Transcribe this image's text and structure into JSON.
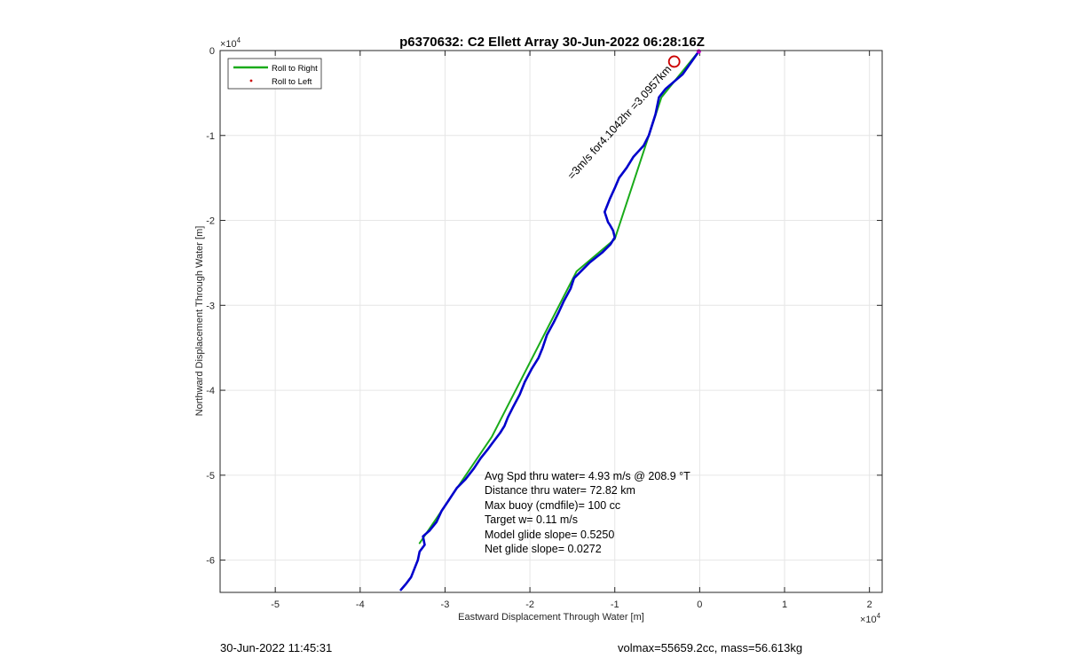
{
  "chart_data": {
    "type": "line",
    "title": "p6370632: C2 Ellett Array 30-Jun-2022 06:28:16Z",
    "xlabel": "Eastward Displacement Through Water [m]",
    "ylabel": "Northward Displacement Through Water [m]",
    "x_exponent": "×10",
    "y_exponent": "×10",
    "exponent_power": "4",
    "xlim": [
      -5.65,
      2.15
    ],
    "ylim": [
      -6.38,
      0
    ],
    "xticks": [
      -5,
      -4,
      -3,
      -2,
      -1,
      0,
      1,
      2
    ],
    "yticks": [
      0,
      -1,
      -2,
      -3,
      -4,
      -5,
      -6
    ],
    "grid": true,
    "legend": {
      "placement": "top-left",
      "entries": [
        {
          "label": "Roll to Right",
          "color": "#1aab1a",
          "marker": "line"
        },
        {
          "label": "Roll to Left",
          "color": "#cc0000",
          "marker": "dot"
        }
      ]
    },
    "series": [
      {
        "name": "Roll to Right",
        "color": "#1aab1a",
        "x": [
          -0.02,
          -0.45,
          -1.0,
          -1.45,
          -2.45,
          -3.3
        ],
        "y": [
          -0.02,
          -0.55,
          -2.22,
          -2.6,
          -4.55,
          -5.8
        ]
      },
      {
        "color": "#0000cc",
        "x": [
          -0.01,
          -0.2,
          -0.4,
          -0.48,
          -0.52,
          -0.6,
          -0.66,
          -0.78,
          -0.86,
          -0.95,
          -1.0,
          -1.06,
          -1.12,
          -1.08,
          -1.06,
          -1.02,
          -1.0,
          -1.05,
          -1.15,
          -1.3,
          -1.42,
          -1.48,
          -1.52,
          -1.6,
          -1.66,
          -1.72,
          -1.8,
          -1.85,
          -1.9,
          -1.98,
          -2.06,
          -2.12,
          -2.2,
          -2.26,
          -2.3,
          -2.35,
          -2.44,
          -2.5,
          -2.58,
          -2.66,
          -2.76,
          -2.86,
          -2.96,
          -3.04,
          -3.1,
          -3.18,
          -3.26,
          -3.24,
          -3.3,
          -3.32,
          -3.36,
          -3.4,
          -3.46,
          -3.52
        ],
        "y": [
          -0.01,
          -0.28,
          -0.45,
          -0.55,
          -0.75,
          -1.0,
          -1.12,
          -1.25,
          -1.38,
          -1.5,
          -1.62,
          -1.75,
          -1.9,
          -2.02,
          -2.05,
          -2.12,
          -2.2,
          -2.28,
          -2.38,
          -2.5,
          -2.62,
          -2.68,
          -2.8,
          -2.95,
          -3.08,
          -3.2,
          -3.35,
          -3.5,
          -3.62,
          -3.75,
          -3.9,
          -4.05,
          -4.2,
          -4.32,
          -4.42,
          -4.5,
          -4.62,
          -4.7,
          -4.8,
          -4.92,
          -5.05,
          -5.15,
          -5.3,
          -5.42,
          -5.55,
          -5.65,
          -5.72,
          -5.82,
          -5.9,
          -6.0,
          -6.1,
          -6.2,
          -6.28,
          -6.35
        ]
      }
    ],
    "markers": [
      {
        "shape": "circle",
        "color": "#cc0000",
        "x": -0.3,
        "y": -0.13
      },
      {
        "shape": "dot",
        "color": "#cc00cc",
        "x": -0.01,
        "y": -0.01
      }
    ],
    "annotations": {
      "rotated_label": "=3m/s for4.1042hr =3.0957km",
      "stats": [
        "Avg Spd thru water=  4.93 m/s @ 208.9 °T",
        "Distance thru water= 72.82 km",
        "Max buoy (cmdfile)= 100 cc",
        "Target w= 0.11 m/s",
        "Model glide slope= 0.5250",
        "Net glide slope= 0.0272"
      ]
    }
  },
  "footer": {
    "left": "30-Jun-2022 11:45:31",
    "right": "volmax=55659.2cc, mass=56.613kg"
  }
}
